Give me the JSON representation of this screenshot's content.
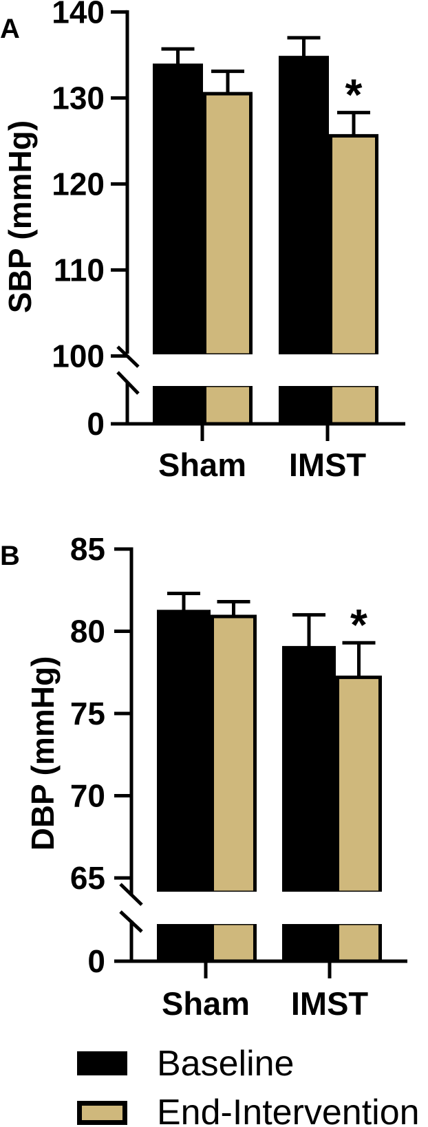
{
  "chart_data": [
    {
      "type": "bar",
      "panel_label": "A",
      "ylabel": "SBP (mmHg)",
      "xlabel": "",
      "categories": [
        "Sham",
        "IMST"
      ],
      "series": [
        {
          "name": "Baseline",
          "values": [
            133.8,
            134.7
          ],
          "errors": [
            1.9,
            2.3
          ]
        },
        {
          "name": "End-Intervention",
          "values": [
            130.5,
            125.6
          ],
          "errors": [
            2.6,
            2.7
          ]
        }
      ],
      "significance": [
        {
          "category": "IMST",
          "series": "End-Intervention",
          "label": "*"
        }
      ],
      "ylim": [
        100,
        140
      ],
      "axis_break": {
        "lower": 0,
        "upper": 100
      },
      "yticks": [
        140,
        130,
        120,
        110,
        100
      ],
      "ytick_labels": [
        "140",
        "130",
        "120",
        "110",
        "100"
      ],
      "lower_tick_label": "0",
      "grid": false
    },
    {
      "type": "bar",
      "panel_label": "B",
      "ylabel": "DBP (mmHg)",
      "xlabel": "",
      "categories": [
        "Sham",
        "IMST"
      ],
      "series": [
        {
          "name": "Baseline",
          "values": [
            81.2,
            79.0
          ],
          "errors": [
            1.1,
            2.0
          ]
        },
        {
          "name": "End-Intervention",
          "values": [
            80.9,
            77.2
          ],
          "errors": [
            0.9,
            2.1
          ]
        }
      ],
      "significance": [
        {
          "category": "IMST",
          "series": "End-Intervention",
          "label": "*"
        }
      ],
      "ylim": [
        65,
        85
      ],
      "axis_break": {
        "lower": 0,
        "upper": 65
      },
      "yticks": [
        85,
        80,
        75,
        70,
        65
      ],
      "ytick_labels": [
        "85",
        "80",
        "75",
        "70",
        "65"
      ],
      "lower_tick_label": "0",
      "grid": false
    }
  ],
  "legend": {
    "placement": "bottom",
    "items": [
      {
        "label": "Baseline",
        "color": "#000000"
      },
      {
        "label": "End-Intervention",
        "color": "#cfb87c"
      }
    ]
  },
  "colors": {
    "baseline": "#000000",
    "end_intervention": "#cfb87c"
  }
}
